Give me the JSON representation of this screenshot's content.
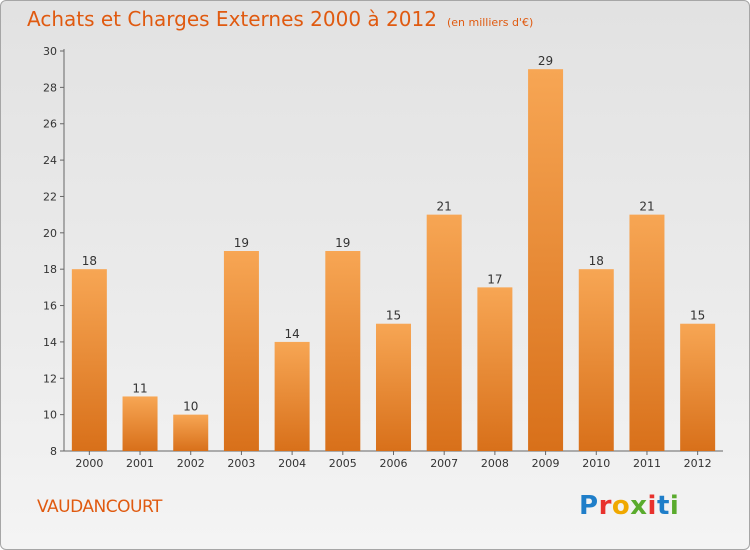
{
  "chart_data": {
    "type": "bar",
    "title": "Achats et Charges Externes 2000 à 2012",
    "subtitle": "(en milliers d'€)",
    "categories": [
      "2000",
      "2001",
      "2002",
      "2003",
      "2004",
      "2005",
      "2006",
      "2007",
      "2008",
      "2009",
      "2010",
      "2011",
      "2012"
    ],
    "values": [
      18,
      11,
      10,
      19,
      14,
      19,
      15,
      21,
      17,
      29,
      18,
      21,
      15
    ],
    "ylim": [
      8,
      30
    ],
    "yticks": [
      8,
      10,
      12,
      14,
      16,
      18,
      20,
      22,
      24,
      26,
      28,
      30
    ],
    "grid": false,
    "legend": "none",
    "bar_color_light": "#f7a654",
    "bar_color_dark": "#d8701a"
  },
  "commune": "VAUDANCOURT",
  "logo": {
    "letters": [
      "P",
      "r",
      "o",
      "x",
      "i",
      "t",
      "i"
    ],
    "colors": [
      "#1f7ec9",
      "#e8322d",
      "#f0a800",
      "#5aab2d",
      "#e8322d",
      "#1f7ec9",
      "#5aab2d"
    ]
  },
  "accent_color": "#e05a10"
}
